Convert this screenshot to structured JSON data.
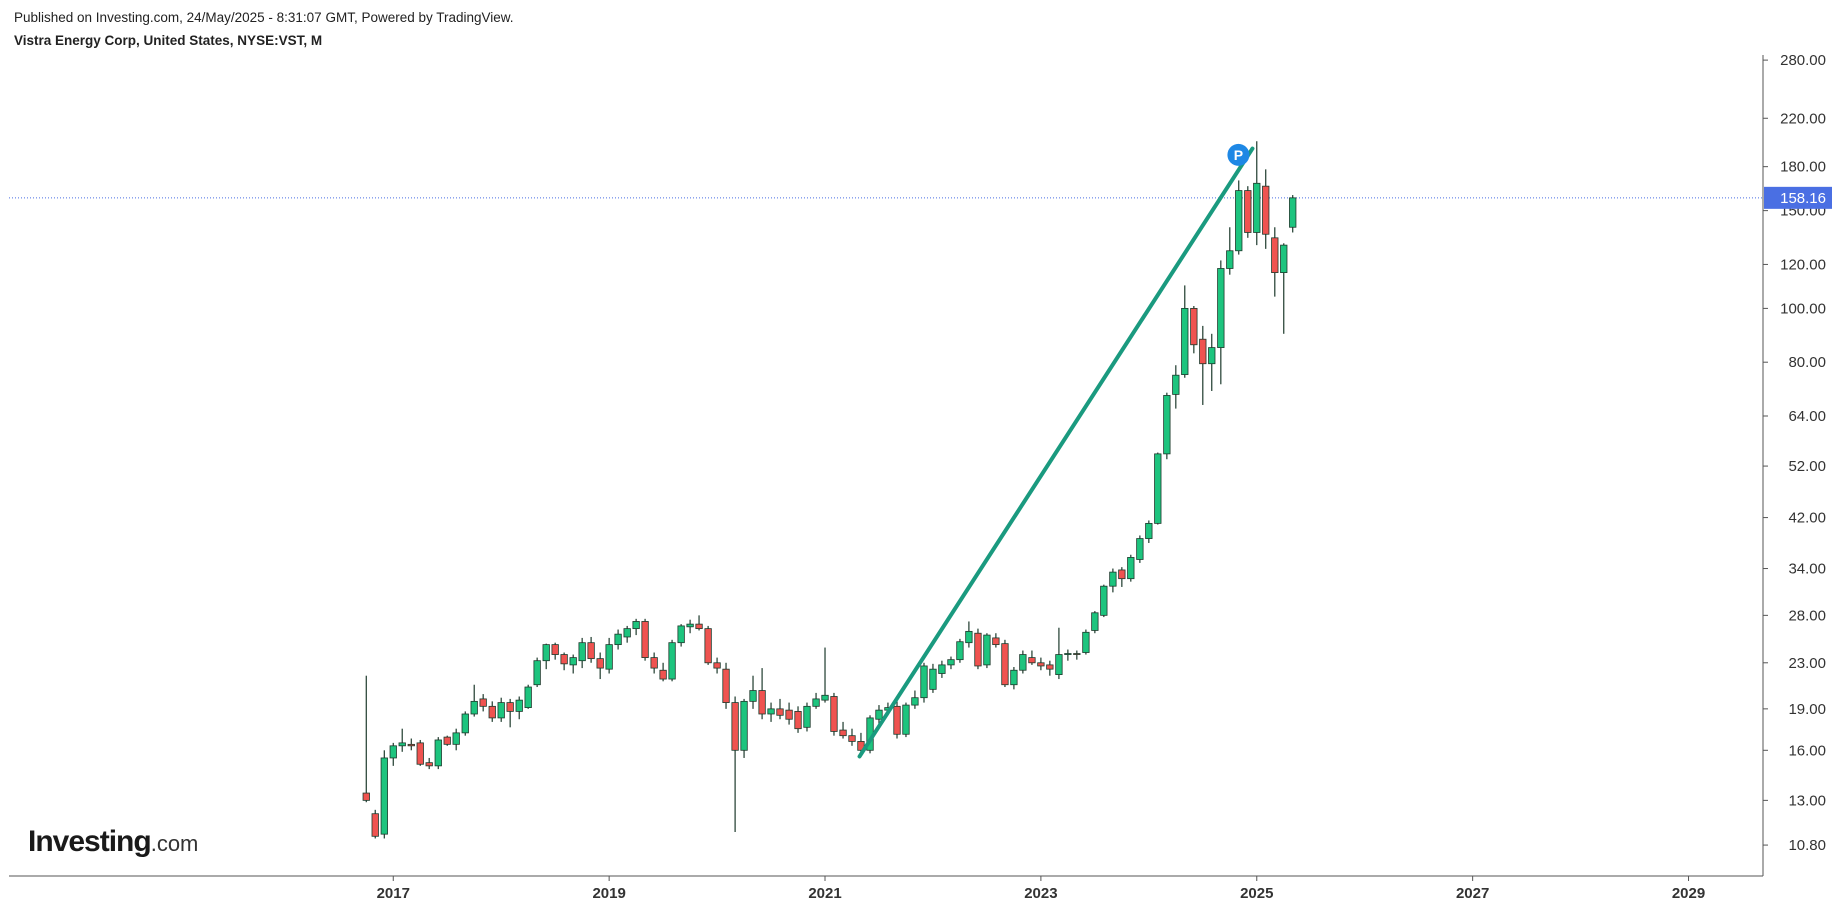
{
  "header": {
    "published": "Published on Investing.com, 24/May/2025 - 8:31:07 GMT, Powered by TradingView.",
    "instrument": "Vistra Energy Corp, United States, NYSE:VST, M"
  },
  "logo": {
    "brand": "Investing",
    "suffix": ".com"
  },
  "chart_data": {
    "type": "candlestick",
    "log_scale": true,
    "grid": false,
    "up_color": "#1dc47e",
    "down_color": "#ef5350",
    "wick_color": "#1d3a2c",
    "xlim": [
      2013.44,
      2029.69
    ],
    "xticks": [
      2017,
      2019,
      2021,
      2023,
      2025,
      2027,
      2029
    ],
    "ylim": [
      9.5,
      286
    ],
    "yticks": [
      {
        "value": 10.8,
        "label": "10.80"
      },
      {
        "value": 13,
        "label": "13.00"
      },
      {
        "value": 16,
        "label": "16.00"
      },
      {
        "value": 19,
        "label": "19.00"
      },
      {
        "value": 23,
        "label": "23.00"
      },
      {
        "value": 28,
        "label": "28.00"
      },
      {
        "value": 34,
        "label": "34.00"
      },
      {
        "value": 42,
        "label": "42.00"
      },
      {
        "value": 52,
        "label": "52.00"
      },
      {
        "value": 64,
        "label": "64.00"
      },
      {
        "value": 80,
        "label": "80.00"
      },
      {
        "value": 100,
        "label": "100.00"
      },
      {
        "value": 120,
        "label": "120.00"
      },
      {
        "value": 150,
        "label": "150.00"
      },
      {
        "value": 180,
        "label": "180.00"
      },
      {
        "value": 220,
        "label": "220.00"
      },
      {
        "value": 280,
        "label": "280.00"
      }
    ],
    "last_price": {
      "value": 158.16,
      "color": "#4a6fe3"
    },
    "trendline": {
      "x": [
        2021.32,
        2024.96
      ],
      "y": [
        15.6,
        194
      ],
      "color": "#1a9a7f"
    },
    "marker": {
      "label": "P",
      "x": 2024.83,
      "y": 189,
      "color": "#1e88e5"
    },
    "x": [
      2016.75,
      2016.833,
      2016.917,
      2017.0,
      2017.083,
      2017.167,
      2017.25,
      2017.333,
      2017.417,
      2017.5,
      2017.583,
      2017.667,
      2017.75,
      2017.833,
      2017.917,
      2018.0,
      2018.083,
      2018.167,
      2018.25,
      2018.333,
      2018.417,
      2018.5,
      2018.583,
      2018.667,
      2018.75,
      2018.833,
      2018.917,
      2019.0,
      2019.083,
      2019.167,
      2019.25,
      2019.333,
      2019.417,
      2019.5,
      2019.583,
      2019.667,
      2019.75,
      2019.833,
      2019.917,
      2020.0,
      2020.083,
      2020.167,
      2020.25,
      2020.333,
      2020.417,
      2020.5,
      2020.583,
      2020.667,
      2020.75,
      2020.833,
      2020.917,
      2021.0,
      2021.083,
      2021.167,
      2021.25,
      2021.333,
      2021.417,
      2021.5,
      2021.583,
      2021.667,
      2021.75,
      2021.833,
      2021.917,
      2022.0,
      2022.083,
      2022.167,
      2022.25,
      2022.333,
      2022.417,
      2022.5,
      2022.583,
      2022.667,
      2022.75,
      2022.833,
      2022.917,
      2023.0,
      2023.083,
      2023.167,
      2023.25,
      2023.333,
      2023.417,
      2023.5,
      2023.583,
      2023.667,
      2023.75,
      2023.833,
      2023.917,
      2024.0,
      2024.083,
      2024.167,
      2024.25,
      2024.333,
      2024.417,
      2024.5,
      2024.583,
      2024.667,
      2024.75,
      2024.833,
      2024.917,
      2025.0,
      2025.083,
      2025.167,
      2025.25,
      2025.333
    ],
    "open": [
      13.4,
      12.3,
      11.3,
      15.5,
      16.3,
      16.4,
      16.5,
      15.2,
      15.0,
      16.9,
      16.4,
      17.2,
      18.6,
      19.8,
      19.2,
      18.3,
      19.5,
      18.8,
      19.1,
      21.0,
      23.2,
      24.8,
      23.8,
      22.8,
      23.2,
      25.0,
      23.4,
      22.4,
      24.8,
      25.6,
      26.5,
      27.3,
      23.5,
      22.3,
      21.5,
      25.0,
      26.7,
      27.0,
      26.5,
      23.0,
      22.4,
      19.5,
      16.0,
      19.6,
      20.5,
      18.6,
      19.0,
      18.9,
      18.8,
      17.6,
      19.2,
      19.7,
      20.0,
      17.4,
      17.0,
      16.6,
      16.0,
      18.2,
      18.9,
      19.2,
      17.1,
      19.3,
      19.9,
      20.6,
      22.0,
      22.8,
      23.3,
      25.0,
      26.0,
      22.8,
      25.5,
      24.9,
      21.0,
      22.3,
      23.5,
      23.0,
      22.8,
      21.9,
      23.8,
      23.9,
      24.0,
      26.3,
      28.0,
      31.6,
      33.8,
      32.6,
      35.3,
      38.5,
      41.0,
      54.7,
      70.0,
      76.0,
      100.0,
      88.0,
      79.5,
      85.0,
      118.0,
      127.0,
      163.0,
      137.0,
      166.0,
      134.0,
      116.0,
      140.0
    ],
    "high": [
      21.8,
      12.5,
      16.0,
      16.5,
      17.5,
      16.8,
      16.7,
      15.5,
      16.9,
      17.0,
      17.5,
      18.8,
      21.0,
      20.2,
      19.6,
      19.9,
      19.8,
      20.0,
      21.0,
      23.5,
      24.9,
      25.0,
      24.0,
      23.8,
      25.5,
      25.6,
      24.0,
      25.5,
      26.4,
      26.8,
      27.6,
      27.6,
      24.0,
      23.0,
      25.3,
      27.0,
      27.5,
      28.0,
      26.8,
      23.5,
      23.0,
      20.0,
      19.8,
      21.8,
      22.5,
      19.5,
      19.8,
      19.5,
      19.2,
      19.5,
      20.3,
      24.5,
      20.3,
      18.0,
      17.5,
      17.2,
      18.5,
      19.3,
      19.5,
      19.6,
      19.5,
      20.5,
      23.0,
      22.9,
      23.2,
      23.6,
      25.4,
      27.3,
      26.5,
      26.0,
      26.0,
      25.3,
      22.6,
      24.2,
      24.2,
      23.5,
      23.2,
      26.6,
      24.3,
      24.2,
      26.4,
      28.5,
      31.8,
      34.0,
      34.2,
      36.0,
      39.0,
      41.5,
      55.0,
      70.5,
      79.0,
      110.0,
      101.0,
      93.0,
      90.0,
      122.0,
      140.0,
      170.0,
      166.0,
      200.0,
      178.0,
      140.0,
      131.0,
      160.0
    ],
    "low": [
      12.9,
      11.1,
      11.1,
      15.0,
      15.9,
      16.0,
      15.0,
      14.8,
      14.8,
      16.3,
      16.0,
      17.0,
      18.4,
      18.8,
      18.0,
      18.0,
      17.6,
      18.2,
      19.0,
      20.8,
      22.4,
      23.3,
      22.3,
      22.0,
      22.5,
      23.0,
      21.5,
      22.0,
      24.3,
      25.0,
      25.8,
      23.2,
      22.0,
      21.3,
      21.3,
      24.6,
      26.0,
      26.3,
      22.8,
      22.0,
      19.0,
      11.4,
      15.5,
      19.0,
      18.2,
      18.0,
      18.2,
      17.8,
      17.2,
      17.3,
      19.0,
      19.5,
      17.0,
      16.8,
      16.3,
      15.7,
      15.8,
      17.8,
      18.5,
      16.8,
      16.9,
      19.0,
      19.5,
      20.3,
      21.6,
      22.4,
      23.0,
      24.5,
      22.4,
      22.5,
      24.5,
      20.8,
      20.6,
      22.0,
      22.8,
      22.3,
      21.8,
      21.5,
      23.2,
      23.3,
      23.8,
      26.0,
      27.8,
      30.8,
      31.5,
      32.2,
      34.8,
      37.8,
      40.8,
      53.5,
      66.0,
      75.0,
      83.0,
      67.0,
      71.0,
      73.0,
      115.0,
      125.0,
      134.0,
      130.0,
      128.0,
      105.0,
      90.0,
      137.0
    ],
    "close": [
      13.0,
      11.2,
      15.5,
      16.3,
      16.5,
      16.3,
      15.1,
      15.0,
      16.7,
      16.4,
      17.2,
      18.6,
      19.6,
      19.2,
      18.3,
      19.5,
      18.8,
      19.7,
      20.8,
      23.2,
      24.8,
      23.8,
      22.9,
      23.5,
      25.0,
      23.4,
      22.5,
      24.8,
      25.9,
      26.5,
      27.3,
      23.5,
      22.5,
      21.5,
      25.0,
      26.8,
      27.0,
      26.5,
      23.0,
      22.5,
      19.5,
      16.0,
      19.6,
      20.5,
      18.6,
      19.0,
      18.5,
      18.2,
      17.5,
      19.2,
      19.8,
      20.1,
      17.3,
      17.0,
      16.6,
      16.0,
      18.3,
      18.9,
      19.1,
      17.1,
      19.3,
      19.9,
      22.7,
      22.4,
      22.8,
      23.3,
      25.1,
      26.2,
      22.7,
      25.8,
      24.8,
      21.0,
      22.3,
      23.8,
      23.0,
      22.7,
      22.4,
      23.8,
      23.9,
      23.8,
      26.1,
      28.3,
      31.6,
      33.5,
      32.6,
      35.6,
      38.5,
      41.0,
      54.7,
      69.7,
      75.8,
      100.0,
      86.0,
      79.5,
      85.0,
      118.0,
      127.0,
      163.0,
      137.0,
      168.0,
      136.0,
      116.0,
      130.0,
      158.16
    ]
  }
}
